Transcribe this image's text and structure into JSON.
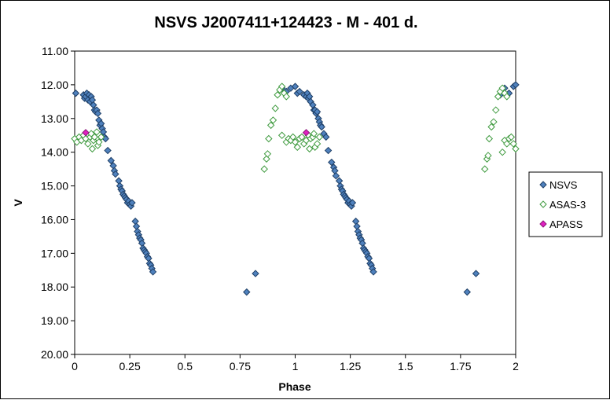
{
  "chart_data": {
    "type": "scatter",
    "title": "NSVS J2007411+124423  - M - 401 d.",
    "xlabel": "Phase",
    "ylabel": "V",
    "xlim": [
      0,
      2
    ],
    "ylim": [
      11,
      20
    ],
    "y_inverted": true,
    "x_ticks": [
      0,
      0.25,
      0.5,
      0.75,
      1,
      1.25,
      1.5,
      1.75,
      2
    ],
    "x_tick_labels": [
      "0",
      "0.25",
      "0.5",
      "0.75",
      "1",
      "1.25",
      "1.5",
      "1.75",
      "2"
    ],
    "y_ticks": [
      11,
      12,
      13,
      14,
      15,
      16,
      17,
      18,
      19,
      20
    ],
    "y_tick_labels": [
      "11.00",
      "12.00",
      "13.00",
      "14.00",
      "15.00",
      "16.00",
      "17.00",
      "18.00",
      "19.00",
      "20.00"
    ],
    "grid": false,
    "legend_position": "right",
    "series": [
      {
        "name": "NSVS",
        "marker": "diamond",
        "fill": "#4F81BD",
        "stroke": "#1F3F66",
        "points": [
          [
            0.005,
            12.25
          ],
          [
            0.04,
            12.3
          ],
          [
            0.045,
            12.4
          ],
          [
            0.05,
            12.35
          ],
          [
            0.055,
            12.25
          ],
          [
            0.06,
            12.45
          ],
          [
            0.065,
            12.3
          ],
          [
            0.07,
            12.5
          ],
          [
            0.075,
            12.35
          ],
          [
            0.08,
            12.45
          ],
          [
            0.085,
            12.6
          ],
          [
            0.09,
            12.75
          ],
          [
            0.095,
            12.8
          ],
          [
            0.1,
            12.75
          ],
          [
            0.105,
            12.85
          ],
          [
            0.11,
            13.05
          ],
          [
            0.115,
            13.2
          ],
          [
            0.12,
            13.15
          ],
          [
            0.125,
            13.3
          ],
          [
            0.13,
            13.4
          ],
          [
            0.135,
            13.55
          ],
          [
            0.14,
            13.6
          ],
          [
            0.15,
            13.95
          ],
          [
            0.165,
            14.25
          ],
          [
            0.175,
            14.4
          ],
          [
            0.18,
            14.55
          ],
          [
            0.185,
            14.65
          ],
          [
            0.2,
            14.85
          ],
          [
            0.205,
            15.0
          ],
          [
            0.21,
            15.1
          ],
          [
            0.215,
            15.15
          ],
          [
            0.22,
            15.25
          ],
          [
            0.225,
            15.3
          ],
          [
            0.23,
            15.35
          ],
          [
            0.235,
            15.4
          ],
          [
            0.24,
            15.5
          ],
          [
            0.245,
            15.45
          ],
          [
            0.25,
            15.55
          ],
          [
            0.255,
            15.6
          ],
          [
            0.26,
            15.5
          ],
          [
            0.275,
            16.05
          ],
          [
            0.28,
            16.2
          ],
          [
            0.285,
            16.35
          ],
          [
            0.29,
            16.45
          ],
          [
            0.295,
            16.55
          ],
          [
            0.3,
            16.6
          ],
          [
            0.305,
            16.7
          ],
          [
            0.31,
            16.85
          ],
          [
            0.315,
            16.9
          ],
          [
            0.32,
            16.95
          ],
          [
            0.325,
            17.0
          ],
          [
            0.33,
            17.1
          ],
          [
            0.335,
            17.15
          ],
          [
            0.34,
            17.3
          ],
          [
            0.345,
            17.35
          ],
          [
            0.35,
            17.45
          ],
          [
            0.355,
            17.55
          ],
          [
            0.78,
            18.15
          ],
          [
            0.82,
            17.6
          ],
          [
            0.94,
            12.1
          ],
          [
            0.96,
            12.2
          ],
          [
            0.98,
            12.1
          ],
          [
            1.0,
            12.05
          ],
          [
            1.01,
            12.25
          ],
          [
            1.02,
            12.2
          ],
          [
            1.04,
            12.3
          ],
          [
            1.05,
            12.35
          ],
          [
            1.055,
            12.25
          ],
          [
            1.06,
            12.4
          ],
          [
            1.065,
            12.35
          ],
          [
            1.07,
            12.5
          ],
          [
            1.08,
            12.6
          ],
          [
            1.085,
            12.75
          ],
          [
            1.09,
            12.75
          ],
          [
            1.095,
            12.85
          ],
          [
            1.1,
            12.8
          ],
          [
            1.105,
            13.0
          ],
          [
            1.11,
            13.1
          ],
          [
            1.115,
            13.2
          ],
          [
            1.12,
            13.25
          ],
          [
            1.13,
            13.45
          ],
          [
            1.14,
            13.55
          ],
          [
            1.15,
            13.95
          ],
          [
            1.165,
            14.3
          ],
          [
            1.175,
            14.45
          ],
          [
            1.18,
            14.55
          ],
          [
            1.185,
            14.7
          ],
          [
            1.2,
            14.85
          ],
          [
            1.205,
            15.0
          ],
          [
            1.21,
            15.1
          ],
          [
            1.215,
            15.15
          ],
          [
            1.22,
            15.25
          ],
          [
            1.225,
            15.3
          ],
          [
            1.23,
            15.35
          ],
          [
            1.235,
            15.4
          ],
          [
            1.24,
            15.5
          ],
          [
            1.245,
            15.45
          ],
          [
            1.25,
            15.55
          ],
          [
            1.255,
            15.6
          ],
          [
            1.26,
            15.5
          ],
          [
            1.275,
            16.05
          ],
          [
            1.28,
            16.2
          ],
          [
            1.285,
            16.35
          ],
          [
            1.29,
            16.45
          ],
          [
            1.295,
            16.55
          ],
          [
            1.3,
            16.6
          ],
          [
            1.305,
            16.7
          ],
          [
            1.31,
            16.85
          ],
          [
            1.315,
            16.9
          ],
          [
            1.32,
            16.95
          ],
          [
            1.325,
            17.0
          ],
          [
            1.33,
            17.1
          ],
          [
            1.335,
            17.15
          ],
          [
            1.34,
            17.3
          ],
          [
            1.345,
            17.35
          ],
          [
            1.35,
            17.45
          ],
          [
            1.355,
            17.55
          ],
          [
            1.78,
            18.15
          ],
          [
            1.82,
            17.6
          ],
          [
            1.93,
            12.3
          ],
          [
            1.95,
            12.1
          ],
          [
            1.97,
            12.25
          ],
          [
            1.99,
            12.05
          ],
          [
            2.0,
            12.0
          ]
        ]
      },
      {
        "name": "ASAS-3",
        "marker": "diamond-open",
        "fill": "#ffffff",
        "stroke": "#3E9A3E",
        "points": [
          [
            0.0,
            13.6
          ],
          [
            0.01,
            13.7
          ],
          [
            0.02,
            13.55
          ],
          [
            0.03,
            13.65
          ],
          [
            0.04,
            13.5
          ],
          [
            0.05,
            13.6
          ],
          [
            0.06,
            13.75
          ],
          [
            0.07,
            13.55
          ],
          [
            0.075,
            13.45
          ],
          [
            0.08,
            13.9
          ],
          [
            0.085,
            13.65
          ],
          [
            0.09,
            13.55
          ],
          [
            0.1,
            13.4
          ],
          [
            0.105,
            13.8
          ],
          [
            0.11,
            13.7
          ],
          [
            0.12,
            13.55
          ],
          [
            0.86,
            14.5
          ],
          [
            0.87,
            14.2
          ],
          [
            0.875,
            14.05
          ],
          [
            0.88,
            13.6
          ],
          [
            0.89,
            13.2
          ],
          [
            0.9,
            13.05
          ],
          [
            0.91,
            12.7
          ],
          [
            0.92,
            12.3
          ],
          [
            0.93,
            12.15
          ],
          [
            0.94,
            12.05
          ],
          [
            0.95,
            12.25
          ],
          [
            0.96,
            12.35
          ],
          [
            0.94,
            13.5
          ],
          [
            0.96,
            13.7
          ],
          [
            0.97,
            13.6
          ],
          [
            0.98,
            13.65
          ],
          [
            0.99,
            13.55
          ],
          [
            1.0,
            13.7
          ],
          [
            1.01,
            13.85
          ],
          [
            1.02,
            13.6
          ],
          [
            1.03,
            13.55
          ],
          [
            1.04,
            13.75
          ],
          [
            1.05,
            13.65
          ],
          [
            1.06,
            13.5
          ],
          [
            1.065,
            13.9
          ],
          [
            1.07,
            13.6
          ],
          [
            1.08,
            13.55
          ],
          [
            1.085,
            13.45
          ],
          [
            1.09,
            13.85
          ],
          [
            1.1,
            13.75
          ],
          [
            1.11,
            13.55
          ],
          [
            1.86,
            14.5
          ],
          [
            1.87,
            14.2
          ],
          [
            1.875,
            14.1
          ],
          [
            1.88,
            13.6
          ],
          [
            1.89,
            13.25
          ],
          [
            1.9,
            13.1
          ],
          [
            1.91,
            12.75
          ],
          [
            1.92,
            12.35
          ],
          [
            1.93,
            12.2
          ],
          [
            1.94,
            12.1
          ],
          [
            1.95,
            12.25
          ],
          [
            1.96,
            12.35
          ],
          [
            1.94,
            14.0
          ],
          [
            1.95,
            13.65
          ],
          [
            1.96,
            13.75
          ],
          [
            1.97,
            13.6
          ],
          [
            1.98,
            13.55
          ],
          [
            1.99,
            13.75
          ],
          [
            2.0,
            13.9
          ]
        ]
      },
      {
        "name": "APASS",
        "marker": "diamond",
        "fill": "#E020C0",
        "stroke": "#8A1578",
        "points": [
          [
            0.05,
            13.42
          ],
          [
            1.05,
            13.42
          ]
        ]
      }
    ]
  },
  "colors": {
    "plot_background": "#ffffff",
    "axis": "#000000"
  }
}
